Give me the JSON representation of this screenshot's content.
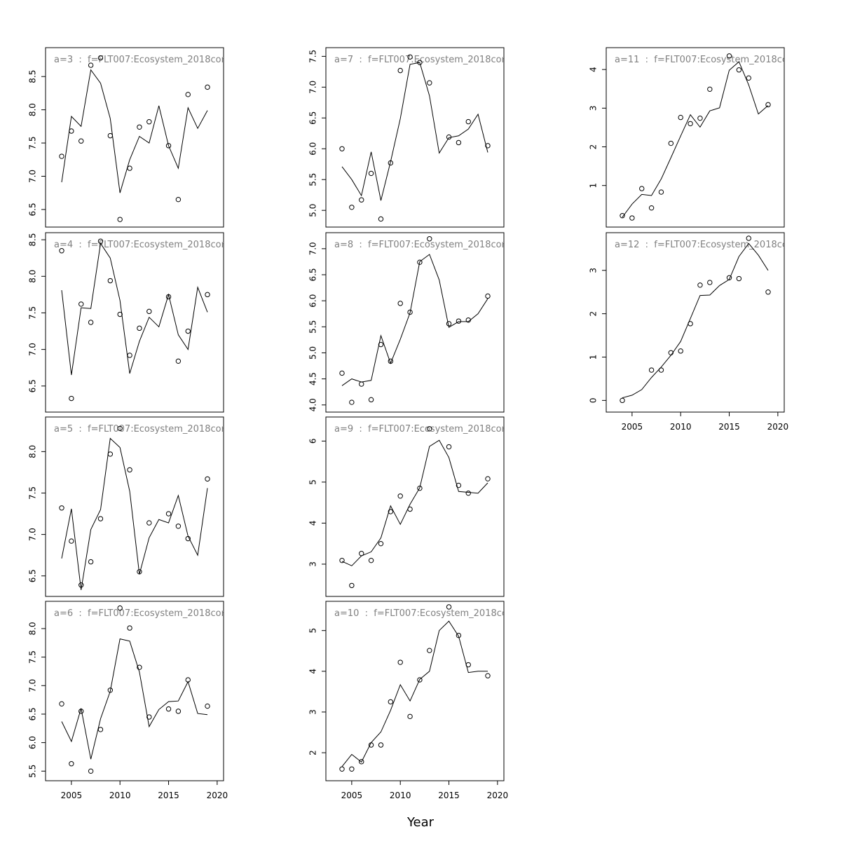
{
  "chart_data": {
    "type": "scatter",
    "xlabel": "Year",
    "colors": {
      "line": "#000000",
      "points": "#000000",
      "panel_label": "#808080",
      "frame": "#000000"
    },
    "panels": [
      {
        "label": "a=3  :  f=FLT007:Ecosystem_2018cor",
        "xlim": [
          2004,
          2019
        ],
        "ylim": [
          6.32,
          8.85
        ],
        "yticks": [
          6.5,
          7.0,
          7.5,
          8.0,
          8.5
        ],
        "yticklabels": [
          "6.5",
          "7.0",
          "7.5",
          "8.0",
          "8.5"
        ],
        "xticks": [],
        "xticklabels": [],
        "points": {
          "x": [
            2004,
            2005,
            2006,
            2007,
            2008,
            2009,
            2010,
            2011,
            2012,
            2013,
            2015,
            2016,
            2017,
            2019
          ],
          "y": [
            7.3,
            7.68,
            7.53,
            8.67,
            8.78,
            7.61,
            6.35,
            7.12,
            7.74,
            7.82,
            7.46,
            6.65,
            8.23,
            8.34
          ]
        },
        "fit": {
          "x": [
            2004,
            2005,
            2006,
            2007,
            2008,
            2009,
            2010,
            2011,
            2012,
            2013,
            2014,
            2015,
            2016,
            2017,
            2018,
            2019
          ],
          "y": [
            6.91,
            7.9,
            7.75,
            8.6,
            8.4,
            7.87,
            6.75,
            7.25,
            7.6,
            7.5,
            8.06,
            7.46,
            7.12,
            8.03,
            7.72,
            7.99
          ]
        }
      },
      {
        "label": "a=4  :  f=FLT007:Ecosystem_2018cor",
        "xlim": [
          2004,
          2019
        ],
        "ylim": [
          6.22,
          8.52
        ],
        "yticks": [
          6.5,
          7.0,
          7.5,
          8.0,
          8.5
        ],
        "yticklabels": [
          "6.5",
          "7.0",
          "7.5",
          "8.0",
          "8.5"
        ],
        "xticks": [],
        "xticklabels": [],
        "points": {
          "x": [
            2004,
            2005,
            2006,
            2007,
            2008,
            2009,
            2010,
            2011,
            2012,
            2013,
            2015,
            2016,
            2017,
            2019
          ],
          "y": [
            8.35,
            6.33,
            7.62,
            7.37,
            8.48,
            7.94,
            7.48,
            6.92,
            7.29,
            7.52,
            7.72,
            6.84,
            7.25,
            7.75
          ]
        },
        "fit": {
          "x": [
            2004,
            2005,
            2006,
            2007,
            2008,
            2009,
            2010,
            2011,
            2012,
            2013,
            2014,
            2015,
            2016,
            2017,
            2018,
            2019
          ],
          "y": [
            7.81,
            6.65,
            7.57,
            7.56,
            8.45,
            8.25,
            7.67,
            6.67,
            7.11,
            7.44,
            7.31,
            7.75,
            7.2,
            7.0,
            7.85,
            7.51
          ]
        }
      },
      {
        "label": "a=5  :  f=FLT007:Ecosystem_2018cor",
        "xlim": [
          2004,
          2019
        ],
        "ylim": [
          6.32,
          8.35
        ],
        "yticks": [
          6.5,
          7.0,
          7.5,
          8.0
        ],
        "yticklabels": [
          "6.5",
          "7.0",
          "7.5",
          "8.0"
        ],
        "xticks": [],
        "xticklabels": [],
        "points": {
          "x": [
            2004,
            2005,
            2006,
            2007,
            2008,
            2009,
            2010,
            2011,
            2012,
            2013,
            2015,
            2016,
            2017,
            2019
          ],
          "y": [
            7.32,
            6.92,
            6.39,
            6.67,
            7.19,
            7.97,
            8.28,
            7.78,
            6.55,
            7.14,
            7.25,
            7.1,
            6.95,
            7.67
          ]
        },
        "fit": {
          "x": [
            2004,
            2005,
            2006,
            2007,
            2008,
            2009,
            2010,
            2011,
            2012,
            2013,
            2014,
            2015,
            2016,
            2017,
            2018,
            2019
          ],
          "y": [
            6.71,
            7.31,
            6.33,
            7.06,
            7.3,
            8.16,
            8.05,
            7.52,
            6.52,
            6.96,
            7.18,
            7.14,
            7.47,
            6.98,
            6.75,
            7.56
          ]
        }
      },
      {
        "label": "a=6  :  f=FLT007:Ecosystem_2018cor",
        "xlim": [
          2004,
          2019
        ],
        "ylim": [
          5.43,
          8.38
        ],
        "yticks": [
          5.5,
          6.0,
          6.5,
          7.0,
          7.5,
          8.0
        ],
        "yticklabels": [
          "5.5",
          "6.0",
          "6.5",
          "7.0",
          "7.5",
          "8.0"
        ],
        "xticks": [
          2005,
          2010,
          2015,
          2020
        ],
        "xticklabels": [
          "2005",
          "2010",
          "2015",
          "2020"
        ],
        "points": {
          "x": [
            2004,
            2005,
            2006,
            2007,
            2008,
            2009,
            2010,
            2011,
            2012,
            2013,
            2015,
            2016,
            2017,
            2019
          ],
          "y": [
            6.68,
            5.63,
            6.55,
            5.5,
            6.23,
            6.92,
            8.36,
            8.01,
            7.32,
            6.45,
            6.59,
            6.55,
            7.1,
            6.64
          ]
        },
        "fit": {
          "x": [
            2004,
            2005,
            2006,
            2007,
            2008,
            2009,
            2010,
            2011,
            2012,
            2013,
            2014,
            2015,
            2016,
            2017,
            2018,
            2019
          ],
          "y": [
            6.37,
            6.02,
            6.6,
            5.71,
            6.42,
            6.9,
            7.82,
            7.78,
            7.24,
            6.28,
            6.58,
            6.72,
            6.73,
            7.07,
            6.51,
            6.49
          ]
        }
      },
      {
        "label": "a=7  :  f=FLT007:Ecosystem_2018cor",
        "xlim": [
          2004,
          2019
        ],
        "ylim": [
          4.82,
          7.55
        ],
        "yticks": [
          5.0,
          5.5,
          6.0,
          6.5,
          7.0,
          7.5
        ],
        "yticklabels": [
          "5.0",
          "5.5",
          "6.0",
          "6.5",
          "7.0",
          "7.5"
        ],
        "xticks": [],
        "xticklabels": [],
        "points": {
          "x": [
            2004,
            2005,
            2006,
            2007,
            2008,
            2009,
            2010,
            2011,
            2012,
            2013,
            2015,
            2016,
            2017,
            2019
          ],
          "y": [
            6.0,
            5.05,
            5.17,
            5.6,
            4.86,
            5.77,
            7.27,
            7.49,
            7.4,
            7.07,
            6.19,
            6.1,
            6.44,
            6.05
          ]
        },
        "fit": {
          "x": [
            2004,
            2005,
            2006,
            2007,
            2008,
            2009,
            2010,
            2011,
            2012,
            2013,
            2014,
            2015,
            2016,
            2017,
            2018,
            2019
          ],
          "y": [
            5.71,
            5.5,
            5.24,
            5.95,
            5.16,
            5.79,
            6.49,
            7.37,
            7.4,
            6.86,
            5.93,
            6.18,
            6.21,
            6.32,
            6.56,
            5.94
          ]
        }
      },
      {
        "label": "a=8  :  f=FLT007:Ecosystem_2018cor",
        "xlim": [
          2004,
          2019
        ],
        "ylim": [
          3.97,
          7.2
        ],
        "yticks": [
          4.0,
          4.5,
          5.0,
          5.5,
          6.0,
          6.5,
          7.0
        ],
        "yticklabels": [
          "4.0",
          "4.5",
          "5.0",
          "5.5",
          "6.0",
          "6.5",
          "7.0"
        ],
        "xticks": [],
        "xticklabels": [],
        "points": {
          "x": [
            2004,
            2005,
            2006,
            2007,
            2008,
            2009,
            2010,
            2011,
            2012,
            2013,
            2015,
            2016,
            2017,
            2019
          ],
          "y": [
            4.61,
            4.05,
            4.4,
            4.1,
            5.16,
            4.84,
            5.95,
            5.78,
            6.74,
            7.19,
            5.56,
            5.61,
            5.63,
            6.09
          ]
        },
        "fit": {
          "x": [
            2004,
            2005,
            2006,
            2007,
            2008,
            2009,
            2010,
            2011,
            2012,
            2013,
            2014,
            2015,
            2016,
            2017,
            2018,
            2019
          ],
          "y": [
            4.37,
            4.5,
            4.44,
            4.47,
            5.33,
            4.8,
            5.26,
            5.77,
            6.75,
            6.89,
            6.4,
            5.49,
            5.6,
            5.6,
            5.75,
            6.04
          ]
        }
      },
      {
        "label": "a=9  :  f=FLT007:Ecosystem_2018cor",
        "xlim": [
          2004,
          2019
        ],
        "ylim": [
          2.35,
          6.45
        ],
        "yticks": [
          3,
          4,
          5,
          6
        ],
        "yticklabels": [
          "3",
          "4",
          "5",
          "6"
        ],
        "xticks": [],
        "xticklabels": [],
        "points": {
          "x": [
            2004,
            2005,
            2006,
            2007,
            2008,
            2009,
            2010,
            2011,
            2012,
            2013,
            2015,
            2016,
            2017,
            2019
          ],
          "y": [
            3.09,
            2.48,
            3.26,
            3.09,
            3.5,
            4.28,
            4.66,
            4.34,
            4.85,
            6.3,
            5.86,
            4.92,
            4.73,
            5.08
          ]
        },
        "fit": {
          "x": [
            2004,
            2005,
            2006,
            2007,
            2008,
            2009,
            2010,
            2011,
            2012,
            2013,
            2014,
            2015,
            2016,
            2017,
            2018,
            2019
          ],
          "y": [
            3.07,
            2.96,
            3.2,
            3.3,
            3.64,
            4.42,
            3.97,
            4.46,
            4.86,
            5.87,
            6.02,
            5.6,
            4.77,
            4.75,
            4.73,
            4.98
          ]
        }
      },
      {
        "label": "a=10  :  f=FLT007:Ecosystem_2018cor",
        "xlim": [
          2004,
          2019
        ],
        "ylim": [
          1.45,
          5.58
        ],
        "yticks": [
          2,
          3,
          4,
          5
        ],
        "yticklabels": [
          "2",
          "3",
          "4",
          "5"
        ],
        "xticks": [
          2005,
          2010,
          2015,
          2020
        ],
        "xticklabels": [
          "2005",
          "2010",
          "2015",
          "2020"
        ],
        "points": {
          "x": [
            2004,
            2005,
            2006,
            2007,
            2008,
            2009,
            2010,
            2011,
            2012,
            2013,
            2015,
            2016,
            2017,
            2019
          ],
          "y": [
            1.6,
            1.6,
            1.78,
            2.19,
            2.19,
            3.25,
            4.22,
            2.89,
            3.79,
            4.51,
            5.58,
            4.88,
            4.16,
            3.89
          ]
        },
        "fit": {
          "x": [
            2004,
            2005,
            2006,
            2007,
            2008,
            2009,
            2010,
            2011,
            2012,
            2013,
            2014,
            2015,
            2016,
            2017,
            2018,
            2019
          ],
          "y": [
            1.66,
            1.96,
            1.77,
            2.25,
            2.51,
            3.04,
            3.67,
            3.27,
            3.8,
            4.0,
            5.0,
            5.23,
            4.86,
            3.97,
            4.0,
            4.0
          ]
        }
      },
      {
        "label": "a=11  :  f=FLT007:Ecosystem_2018cor",
        "xlim": [
          2004,
          2019
        ],
        "ylim": [
          0.07,
          4.42
        ],
        "yticks": [
          1,
          2,
          3,
          4
        ],
        "yticklabels": [
          "1",
          "2",
          "3",
          "4"
        ],
        "xticks": [],
        "xticklabels": [],
        "points": {
          "x": [
            2004,
            2005,
            2006,
            2007,
            2008,
            2009,
            2010,
            2011,
            2012,
            2013,
            2015,
            2016,
            2017,
            2019
          ],
          "y": [
            0.22,
            0.16,
            0.92,
            0.42,
            0.83,
            2.09,
            2.76,
            2.6,
            2.74,
            3.49,
            4.35,
            3.99,
            3.78,
            3.09
          ]
        },
        "fit": {
          "x": [
            2004,
            2005,
            2006,
            2007,
            2008,
            2009,
            2010,
            2011,
            2012,
            2013,
            2014,
            2015,
            2016,
            2017,
            2018,
            2019
          ],
          "y": [
            0.18,
            0.52,
            0.77,
            0.74,
            1.17,
            1.72,
            2.28,
            2.83,
            2.51,
            2.93,
            3.01,
            3.98,
            4.2,
            3.6,
            2.85,
            3.07
          ]
        }
      },
      {
        "label": "a=12  :  f=FLT007:Ecosystem_2018cor",
        "xlim": [
          2004,
          2019
        ],
        "ylim": [
          -0.14,
          3.74
        ],
        "yticks": [
          0,
          1,
          2,
          3
        ],
        "yticklabels": [
          "0",
          "1",
          "2",
          "3"
        ],
        "xticks": [
          2005,
          2010,
          2015,
          2020
        ],
        "xticklabels": [
          "2005",
          "2010",
          "2015",
          "2020"
        ],
        "points": {
          "x": [
            2004,
            2007,
            2008,
            2009,
            2010,
            2011,
            2012,
            2013,
            2015,
            2016,
            2017,
            2019
          ],
          "y": [
            0.0,
            0.7,
            0.7,
            1.1,
            1.14,
            1.77,
            2.66,
            2.72,
            2.83,
            2.81,
            3.74,
            2.5
          ]
        },
        "fit": {
          "x": [
            2004,
            2005,
            2006,
            2007,
            2008,
            2009,
            2010,
            2011,
            2012,
            2013,
            2014,
            2015,
            2016,
            2017,
            2018,
            2019
          ],
          "y": [
            0.06,
            0.12,
            0.25,
            0.53,
            0.77,
            1.04,
            1.36,
            1.89,
            2.42,
            2.43,
            2.65,
            2.79,
            3.32,
            3.62,
            3.35,
            3.0
          ]
        }
      }
    ]
  }
}
